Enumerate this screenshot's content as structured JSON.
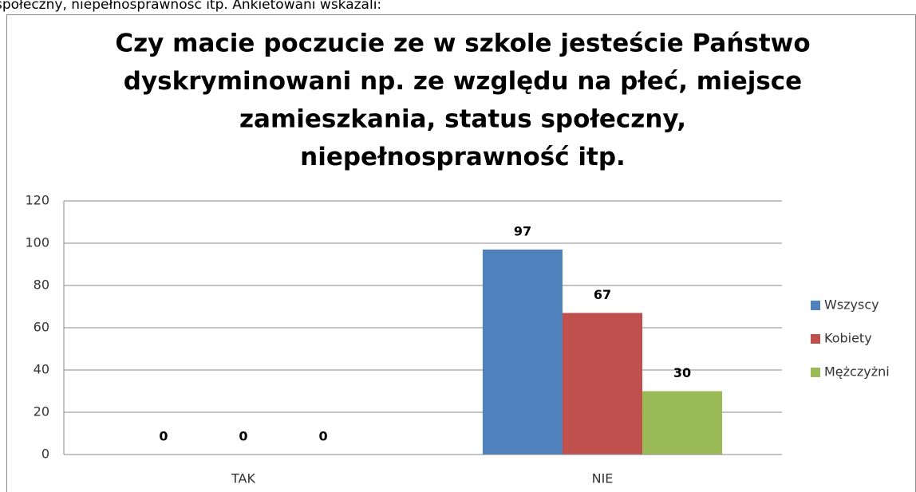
{
  "header_text": "społeczny, niepełnosprawność itp. Ankietowani wskazali:",
  "chart_data": {
    "type": "bar",
    "title": [
      "Czy macie poczucie ze w szkole jesteście Państwo",
      "dyskryminowani np. ze względu na płeć, miejsce",
      "zamieszkania, status społeczny,",
      "niepełnosprawność itp."
    ],
    "categories": [
      "TAK",
      "NIE"
    ],
    "series": [
      {
        "name": "Wszyscy",
        "color": "#4f81bd",
        "values": [
          0,
          97
        ]
      },
      {
        "name": "Kobiety",
        "color": "#c0504d",
        "values": [
          0,
          67
        ]
      },
      {
        "name": "Mężczyżni",
        "color": "#9bbb59",
        "values": [
          0,
          30
        ]
      }
    ],
    "ylim": [
      0,
      120
    ],
    "yticks": [
      0,
      20,
      40,
      60,
      80,
      100,
      120
    ],
    "grid": true,
    "legend": "right"
  }
}
